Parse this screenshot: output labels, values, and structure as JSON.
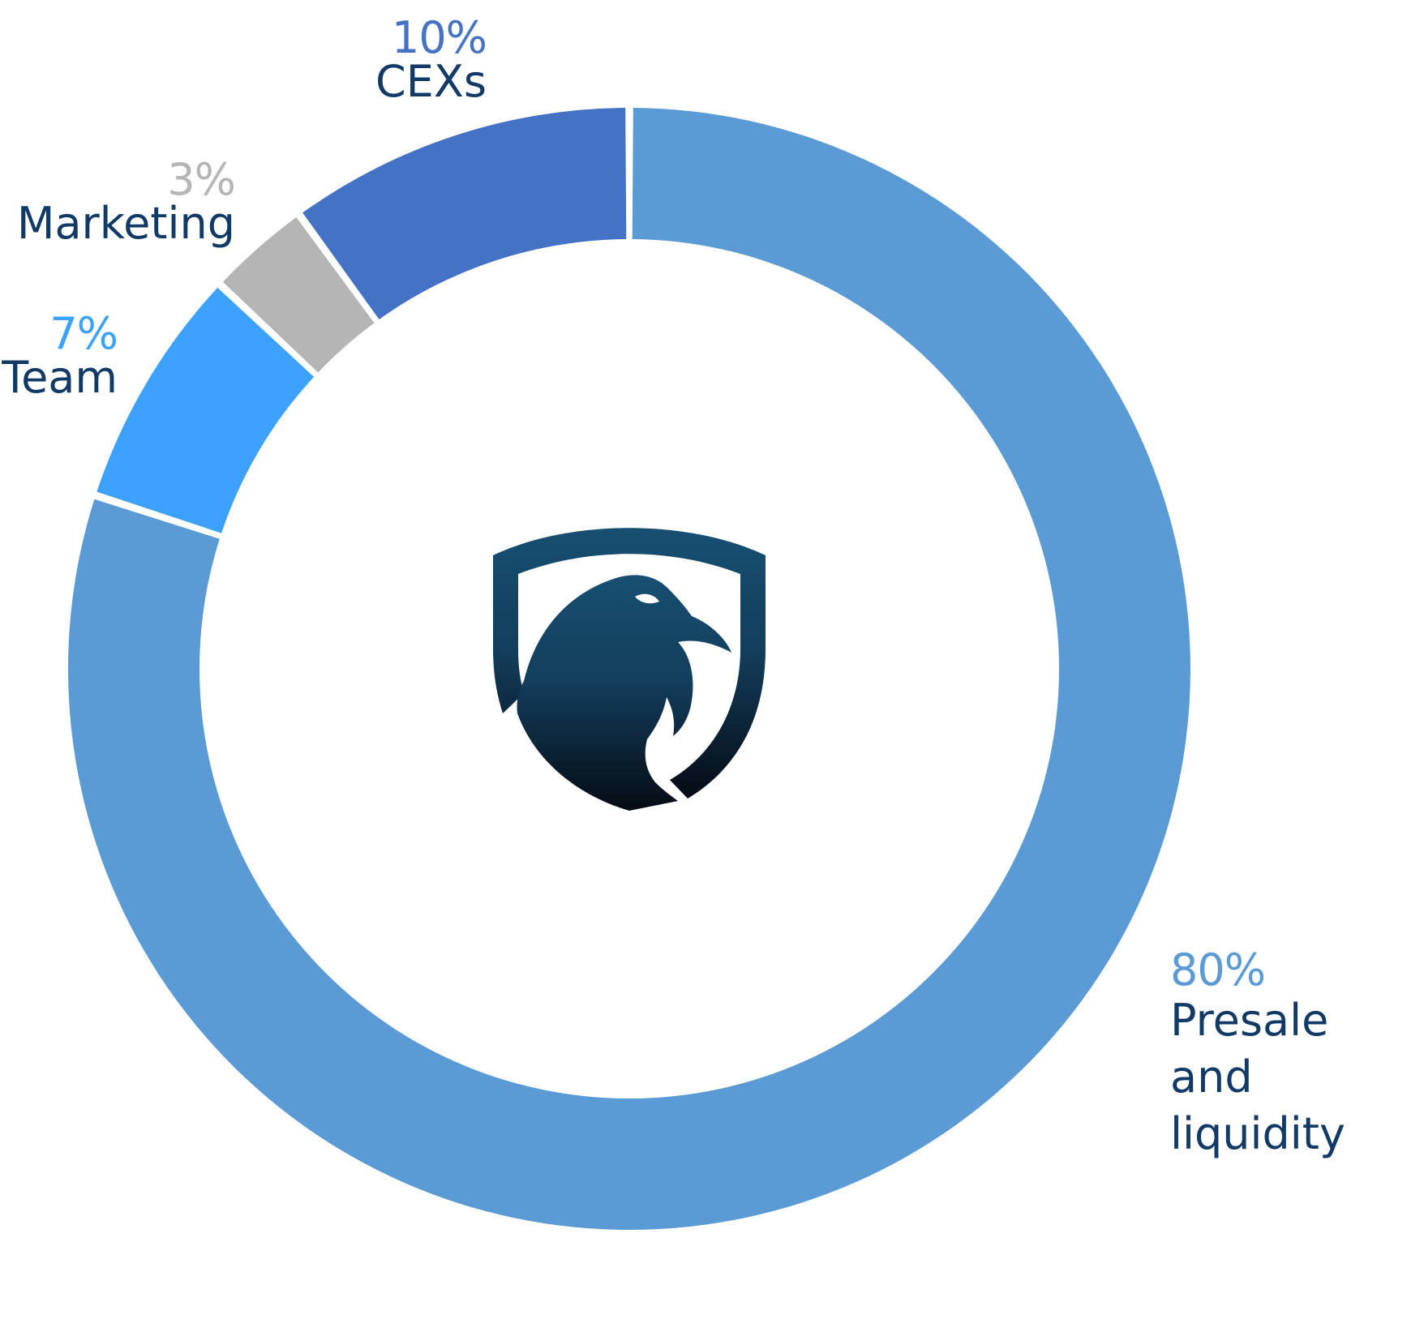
{
  "chart_data": {
    "type": "pie",
    "variant": "donut",
    "title": "",
    "slices": [
      {
        "label": "Presale and liquidity",
        "value": 80,
        "value_label": "80%",
        "color": "#5b9bd5"
      },
      {
        "label": "Team",
        "value": 7,
        "value_label": "7%",
        "color": "#3da1ff"
      },
      {
        "label": "Marketing",
        "value": 3,
        "value_label": "3%",
        "color": "#b5b5b5"
      },
      {
        "label": "CEXs",
        "value": 10,
        "value_label": "10%",
        "color": "#4472c4"
      }
    ],
    "label_colors": {
      "name": "#123a66"
    },
    "center_icon": "eagle-shield-logo-icon"
  }
}
